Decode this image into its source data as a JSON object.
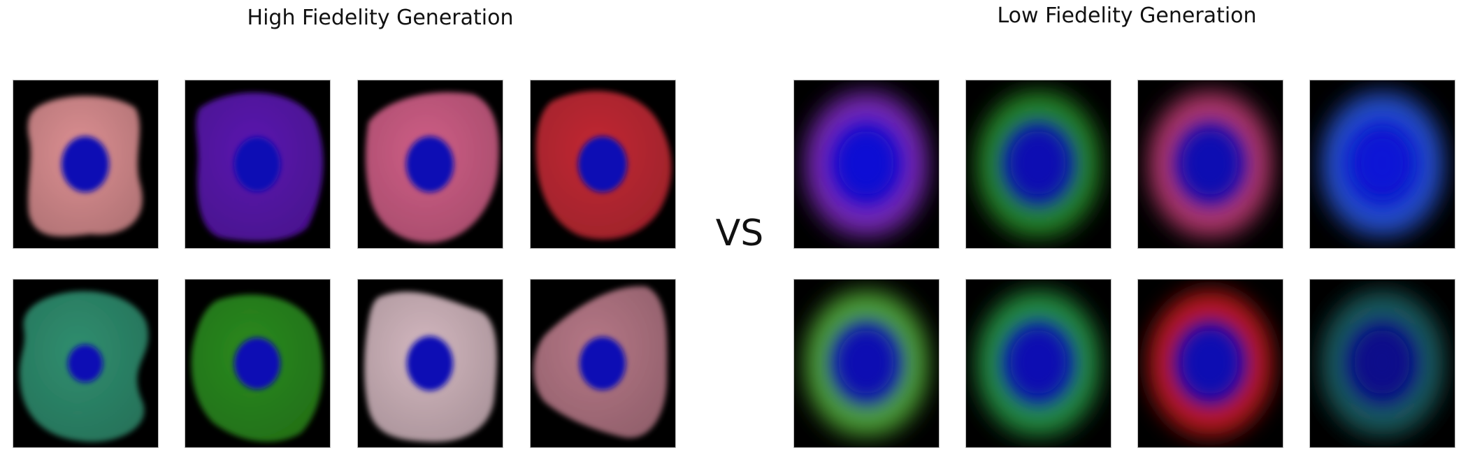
{
  "headings": {
    "high": "High Fiedelity Generation",
    "low": "Low Fiedelity Generation",
    "vs": "VS"
  },
  "high_fidelity_cells": [
    {
      "row": 1,
      "col": 1,
      "cell_color": "#dc8f92",
      "nucleus_color": "#0a0ab4"
    },
    {
      "row": 1,
      "col": 2,
      "cell_color": "#5a14b0",
      "nucleus_color": "#0a0ab4"
    },
    {
      "row": 1,
      "col": 3,
      "cell_color": "#cf5e86",
      "nucleus_color": "#0a0ab4"
    },
    {
      "row": 1,
      "col": 4,
      "cell_color": "#c22834",
      "nucleus_color": "#0a0ab4"
    },
    {
      "row": 2,
      "col": 1,
      "cell_color": "#2f8e6f",
      "nucleus_color": "#0a0ab4"
    },
    {
      "row": 2,
      "col": 2,
      "cell_color": "#2a8a1c",
      "nucleus_color": "#0a0ab4"
    },
    {
      "row": 2,
      "col": 3,
      "cell_color": "#d3b7bf",
      "nucleus_color": "#0a0ab4"
    },
    {
      "row": 2,
      "col": 4,
      "cell_color": "#b57786",
      "nucleus_color": "#0a0ab4"
    }
  ],
  "low_fidelity_cells": [
    {
      "row": 1,
      "col": 1,
      "ring_color": "#8a2ed0",
      "nucleus_color": "#0a0ad6"
    },
    {
      "row": 1,
      "col": 2,
      "ring_color": "#2ca02c",
      "nucleus_color": "#0a0ab4"
    },
    {
      "row": 1,
      "col": 3,
      "ring_color": "#d0407a",
      "nucleus_color": "#0a0ab4"
    },
    {
      "row": 1,
      "col": 4,
      "ring_color": "#2a5ae6",
      "nucleus_color": "#0a14d8"
    },
    {
      "row": 2,
      "col": 1,
      "ring_color": "#5cc03c",
      "nucleus_color": "#0a0ab4"
    },
    {
      "row": 2,
      "col": 2,
      "ring_color": "#2aa848",
      "nucleus_color": "#0a0ab4"
    },
    {
      "row": 2,
      "col": 3,
      "ring_color": "#e01e1e",
      "nucleus_color": "#0a0ab4"
    },
    {
      "row": 2,
      "col": 4,
      "ring_color": "#1f6a6a",
      "nucleus_color": "#0a0a8c"
    }
  ]
}
